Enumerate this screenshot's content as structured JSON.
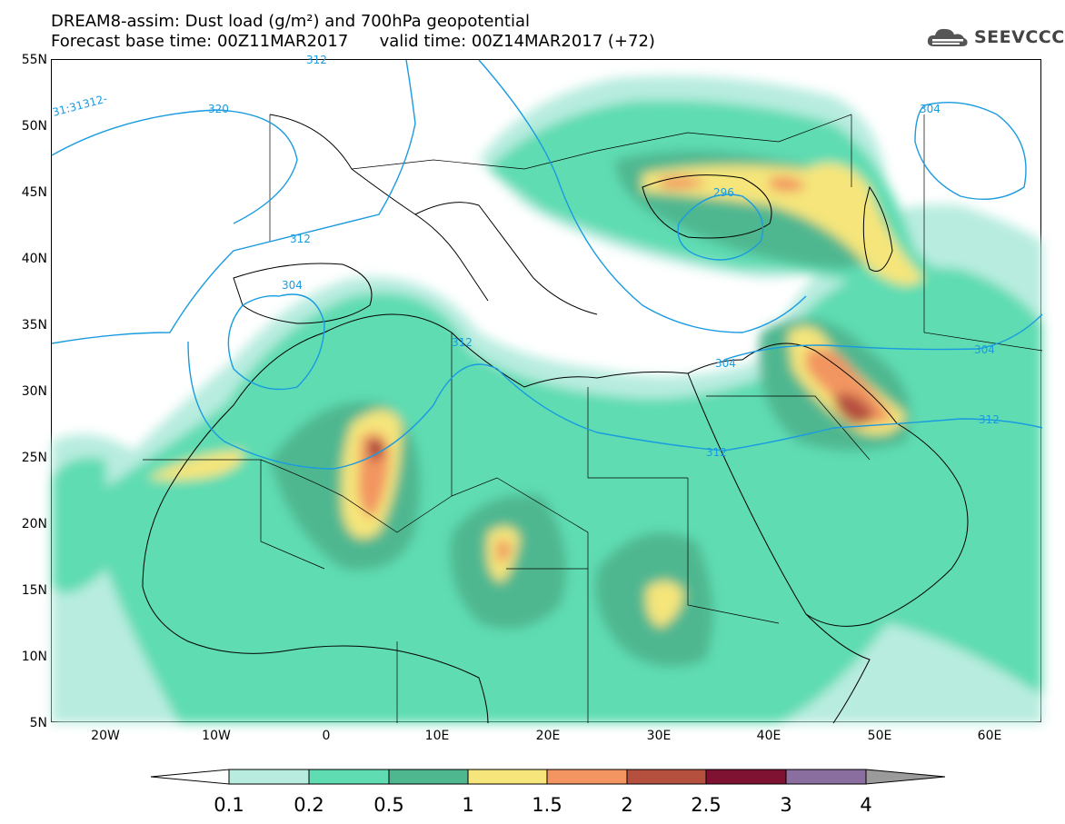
{
  "title": {
    "line1": "DREAM8-assim: Dust load (g/m²) and 700hPa geopotential",
    "line2": "Forecast base time: 00Z11MAR2017      valid time: 00Z14MAR2017 (+72)"
  },
  "logo": {
    "text": "SEEVCCC",
    "icon": "cloud-icon"
  },
  "axes": {
    "lat_labels": [
      "55N",
      "50N",
      "45N",
      "40N",
      "35N",
      "30N",
      "25N",
      "20N",
      "15N",
      "10N",
      "5N"
    ],
    "lon_labels": [
      "20W",
      "10W",
      "0",
      "10E",
      "20E",
      "30E",
      "40E",
      "50E",
      "60E"
    ]
  },
  "contour_labels": [
    "31:31312-",
    "320",
    "312",
    "312",
    "304",
    "312",
    "304",
    "312",
    "312",
    "304",
    "304",
    "296"
  ],
  "colorbar": {
    "labels": [
      "0.1",
      "0.2",
      "0.5",
      "1",
      "1.5",
      "2",
      "2.5",
      "3",
      "4"
    ],
    "colors": [
      "#b8ecdf",
      "#5fdcb2",
      "#4fb790",
      "#f5e57a",
      "#f29560",
      "#b5503f",
      "#7f1233",
      "#8b6ea0",
      "#9b9b9b"
    ]
  },
  "colors": {
    "geopotential_contour": "#1a9be0",
    "coastline": "#000000"
  }
}
